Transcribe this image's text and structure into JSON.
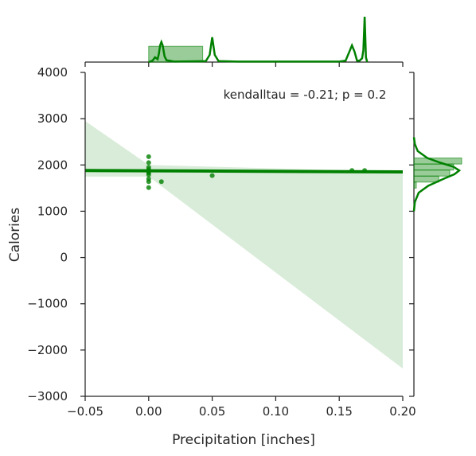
{
  "chart_data": {
    "type": "scatter",
    "subtype": "jointplot-regression",
    "annotation": "kendalltau = -0.21; p = 0.2",
    "xlabel": "Precipitation [inches]",
    "ylabel": "Calories",
    "xlim": [
      -0.05,
      0.2
    ],
    "ylim": [
      -3000,
      4000
    ],
    "xticks": [
      -0.05,
      0.0,
      0.05,
      0.1,
      0.15,
      0.2
    ],
    "xtick_labels": [
      "−0.05",
      "0.00",
      "0.05",
      "0.10",
      "0.15",
      "0.20"
    ],
    "yticks": [
      -3000,
      -2000,
      -1000,
      0,
      1000,
      2000,
      3000,
      4000
    ],
    "ytick_labels": [
      "−3000",
      "−2000",
      "−1000",
      "0",
      "1000",
      "2000",
      "3000",
      "4000"
    ],
    "grid": false,
    "color": "#008000",
    "points": [
      {
        "x": 0.0,
        "y": 2180
      },
      {
        "x": 0.0,
        "y": 2050
      },
      {
        "x": 0.0,
        "y": 1950
      },
      {
        "x": 0.0,
        "y": 1900
      },
      {
        "x": 0.0,
        "y": 1860
      },
      {
        "x": 0.0,
        "y": 1830
      },
      {
        "x": 0.0,
        "y": 1790
      },
      {
        "x": 0.0,
        "y": 1700
      },
      {
        "x": 0.0,
        "y": 1640
      },
      {
        "x": 0.0,
        "y": 1510
      },
      {
        "x": 0.01,
        "y": 1640
      },
      {
        "x": 0.05,
        "y": 1770
      },
      {
        "x": 0.16,
        "y": 1880
      },
      {
        "x": 0.17,
        "y": 1880
      }
    ],
    "regression": {
      "x": [
        -0.05,
        0.2
      ],
      "y": [
        1880,
        1850
      ]
    },
    "confidence_band": {
      "x": [
        -0.05,
        0.0,
        0.2
      ],
      "upper": [
        2950,
        2000,
        1850
      ],
      "lower": [
        1750,
        1750,
        -2400
      ]
    },
    "marginal_x": {
      "hist_bins": [
        {
          "from": 0.0,
          "to": 0.0425,
          "height": 0.33
        }
      ],
      "kde": [
        {
          "x": 0.0,
          "y": 0.0
        },
        {
          "x": 0.003,
          "y": 0.03
        },
        {
          "x": 0.005,
          "y": 0.1
        },
        {
          "x": 0.007,
          "y": 0.06
        },
        {
          "x": 0.008,
          "y": 0.17
        },
        {
          "x": 0.009,
          "y": 0.35
        },
        {
          "x": 0.01,
          "y": 0.42
        },
        {
          "x": 0.011,
          "y": 0.35
        },
        {
          "x": 0.0125,
          "y": 0.12
        },
        {
          "x": 0.014,
          "y": 0.04
        },
        {
          "x": 0.02,
          "y": 0.01
        },
        {
          "x": 0.045,
          "y": 0.02
        },
        {
          "x": 0.048,
          "y": 0.15
        },
        {
          "x": 0.05,
          "y": 0.52
        },
        {
          "x": 0.052,
          "y": 0.15
        },
        {
          "x": 0.055,
          "y": 0.02
        },
        {
          "x": 0.07,
          "y": 0.01
        },
        {
          "x": 0.15,
          "y": 0.01
        },
        {
          "x": 0.155,
          "y": 0.03
        },
        {
          "x": 0.158,
          "y": 0.22
        },
        {
          "x": 0.16,
          "y": 0.35
        },
        {
          "x": 0.162,
          "y": 0.22
        },
        {
          "x": 0.164,
          "y": 0.03
        },
        {
          "x": 0.166,
          "y": 0.03
        },
        {
          "x": 0.168,
          "y": 0.08
        },
        {
          "x": 0.169,
          "y": 0.25
        },
        {
          "x": 0.17,
          "y": 0.95
        },
        {
          "x": 0.171,
          "y": 0.1
        },
        {
          "x": 0.172,
          "y": 0.0
        }
      ]
    },
    "marginal_y": {
      "hist_bins": [
        {
          "from": 1500,
          "to": 1630,
          "count": 0.05
        },
        {
          "from": 1630,
          "to": 1760,
          "count": 0.52
        },
        {
          "from": 1760,
          "to": 1890,
          "count": 0.75
        },
        {
          "from": 1890,
          "to": 2020,
          "count": 0.83
        },
        {
          "from": 2020,
          "to": 2150,
          "count": 1.0
        }
      ],
      "kde": [
        {
          "y": 1000,
          "v": 0.0
        },
        {
          "y": 1200,
          "v": 0.02
        },
        {
          "y": 1400,
          "v": 0.1
        },
        {
          "y": 1550,
          "v": 0.3
        },
        {
          "y": 1700,
          "v": 0.62
        },
        {
          "y": 1800,
          "v": 0.85
        },
        {
          "y": 1880,
          "v": 0.95
        },
        {
          "y": 1960,
          "v": 0.83
        },
        {
          "y": 2050,
          "v": 0.55
        },
        {
          "y": 2150,
          "v": 0.28
        },
        {
          "y": 2300,
          "v": 0.08
        },
        {
          "y": 2450,
          "v": 0.02
        },
        {
          "y": 2600,
          "v": 0.0
        }
      ]
    }
  }
}
